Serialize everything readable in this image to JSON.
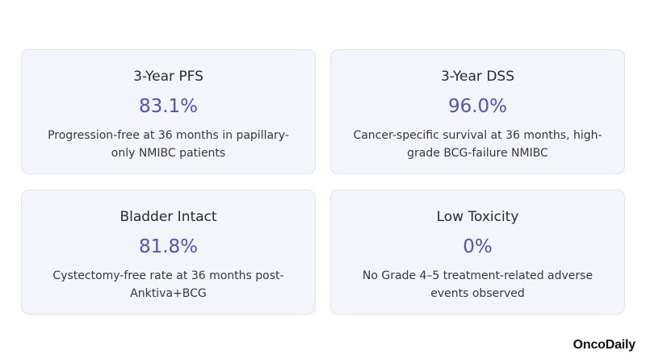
{
  "cards": [
    {
      "title": "3-Year PFS",
      "value": "83.1%",
      "description": "Progression-free at 36 months in papillary-only NMIBC patients"
    },
    {
      "title": "3-Year DSS",
      "value": "96.0%",
      "description": "Cancer-specific survival at 36 months, high-grade BCG-failure NMIBC"
    },
    {
      "title": "Bladder Intact",
      "value": "81.8%",
      "description": "Cystectomy-free rate at 36 months post-Anktiva+BCG"
    },
    {
      "title": "Low Toxicity",
      "value": "0%",
      "description": "No Grade 4–5 treatment-related adverse events observed"
    }
  ],
  "brand": {
    "name": "OncoDaily"
  },
  "colors": {
    "value_accent": "#4f50cf",
    "card_background": "#f4f5fa",
    "card_border": "#e1e3ec"
  }
}
